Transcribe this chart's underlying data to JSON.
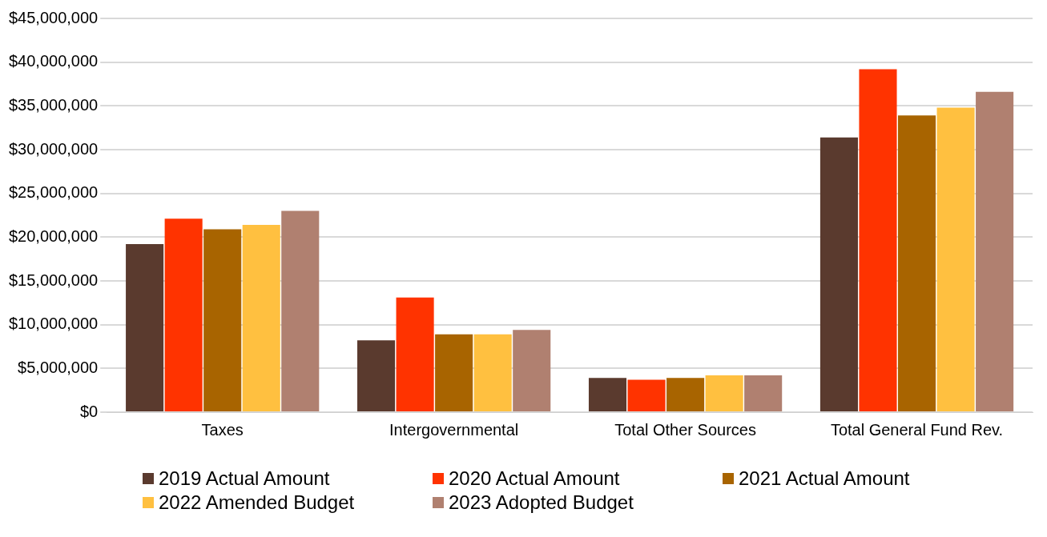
{
  "chart_data": {
    "type": "bar",
    "categories": [
      "Taxes",
      "Intergovernmental",
      "Total Other Sources",
      "Total General Fund Rev."
    ],
    "series": [
      {
        "name": "2019 Actual Amount",
        "color": "#5a3a2e",
        "values": [
          19200000,
          8200000,
          3900000,
          31400000
        ]
      },
      {
        "name": "2020 Actual Amount",
        "color": "#ff3300",
        "values": [
          22100000,
          13100000,
          3700000,
          39200000
        ]
      },
      {
        "name": "2021 Actual Amount",
        "color": "#a86400",
        "values": [
          20900000,
          8900000,
          3900000,
          33900000
        ]
      },
      {
        "name": "2022 Amended Budget",
        "color": "#ffc040",
        "values": [
          21400000,
          8900000,
          4200000,
          34800000
        ]
      },
      {
        "name": "2023 Adopted Budget",
        "color": "#b08070",
        "values": [
          23000000,
          9400000,
          4200000,
          36600000
        ]
      }
    ],
    "ylim": [
      0,
      45000000
    ],
    "yticks": [
      {
        "value": 0,
        "label": "$0"
      },
      {
        "value": 5000000,
        "label": "$5,000,000"
      },
      {
        "value": 10000000,
        "label": "$10,000,000"
      },
      {
        "value": 15000000,
        "label": "$15,000,000"
      },
      {
        "value": 20000000,
        "label": "$20,000,000"
      },
      {
        "value": 25000000,
        "label": "$25,000,000"
      },
      {
        "value": 30000000,
        "label": "$30,000,000"
      },
      {
        "value": 35000000,
        "label": "$35,000,000"
      },
      {
        "value": 40000000,
        "label": "$40,000,000"
      },
      {
        "value": 45000000,
        "label": "$45,000,000"
      }
    ],
    "grid": "y",
    "legend": "bottom"
  }
}
